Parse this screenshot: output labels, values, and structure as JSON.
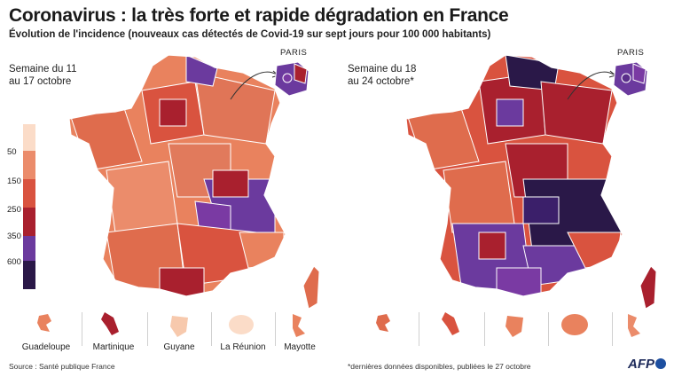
{
  "title": "Coronavirus : la très forte et rapide dégradation en France",
  "subtitle": "Évolution de l'incidence (nouveaux cas détectés de Covid-19 sur sept jours pour 100 000 habitants)",
  "maps": [
    {
      "label_line1": "Semaine du 11",
      "label_line2": "au 17 octobre",
      "paris_label": "PARIS"
    },
    {
      "label_line1": "Semaine du 18",
      "label_line2": "au 24 octobre*",
      "paris_label": "PARIS"
    }
  ],
  "legend": {
    "labels": [
      "50",
      "150",
      "250",
      "350",
      "600"
    ],
    "colors": [
      "#fbdcc8",
      "#eb8c6b",
      "#d9533f",
      "#a9202e",
      "#6b3a9e",
      "#2a1848"
    ]
  },
  "overseas": [
    "Guadeloupe",
    "Martinique",
    "Guyane",
    "La Réunion",
    "Mayotte"
  ],
  "footer": {
    "source": "Source : Santé publique France",
    "note": "*dernières données disponibles, publiées le 27 octobre",
    "brand": "AFP"
  }
}
